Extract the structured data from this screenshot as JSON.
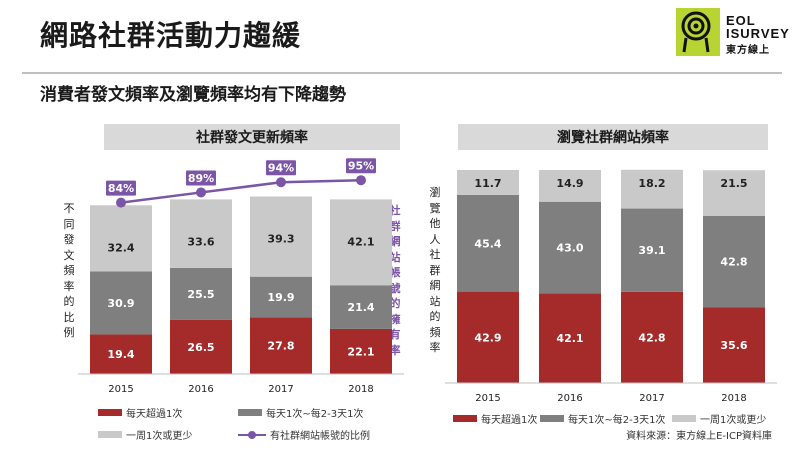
{
  "page": {
    "title": "網路社群活動力趨緩",
    "subtitle": "消費者發文頻率及瀏覽頻率均有下降趨勢",
    "source": "資料來源：東方線上E-ICP資料庫"
  },
  "logo": {
    "line1": "EOL",
    "line2": "ISURVEY",
    "line3": "東方線上"
  },
  "colors": {
    "daily": "#A52A2A",
    "weekly": "#7F7F7F",
    "less": "#C9C9C9",
    "line": "#7B55A6"
  },
  "chart_data": [
    {
      "type": "bar",
      "stacked": true,
      "title": "社群發文更新頻率",
      "ylabel": "不同發文頻率的比例",
      "y2label": "社群網站帳號的擁有率",
      "categories": [
        "2015",
        "2016",
        "2017",
        "2018"
      ],
      "series": [
        {
          "name": "每天超過1次",
          "color": "#A52A2A",
          "values": [
            19.4,
            26.5,
            27.8,
            22.1
          ]
        },
        {
          "name": "每天1次~每2-3天1次",
          "color": "#7F7F7F",
          "values": [
            30.9,
            25.5,
            19.9,
            21.4
          ]
        },
        {
          "name": "一周1次或更少",
          "color": "#C9C9C9",
          "values": [
            32.4,
            33.6,
            39.3,
            42.1
          ]
        }
      ],
      "line_series": {
        "name": "有社群網站帳號的比例",
        "color": "#7B55A6",
        "values": [
          84,
          89,
          94,
          95
        ],
        "labels": [
          "84%",
          "89%",
          "94%",
          "95%"
        ]
      }
    },
    {
      "type": "bar",
      "stacked": true,
      "title": "瀏覽社群網站頻率",
      "ylabel": "瀏覽他人社群網站的頻率",
      "categories": [
        "2015",
        "2016",
        "2017",
        "2018"
      ],
      "series": [
        {
          "name": "每天超過1次",
          "color": "#A52A2A",
          "values": [
            42.9,
            42.1,
            42.8,
            35.6
          ]
        },
        {
          "name": "每天1次~每2-3天1次",
          "color": "#7F7F7F",
          "values": [
            45.4,
            43.0,
            39.1,
            42.8
          ]
        },
        {
          "name": "一周1次或更少",
          "color": "#C9C9C9",
          "values": [
            11.7,
            14.9,
            18.2,
            21.5
          ]
        }
      ]
    }
  ]
}
